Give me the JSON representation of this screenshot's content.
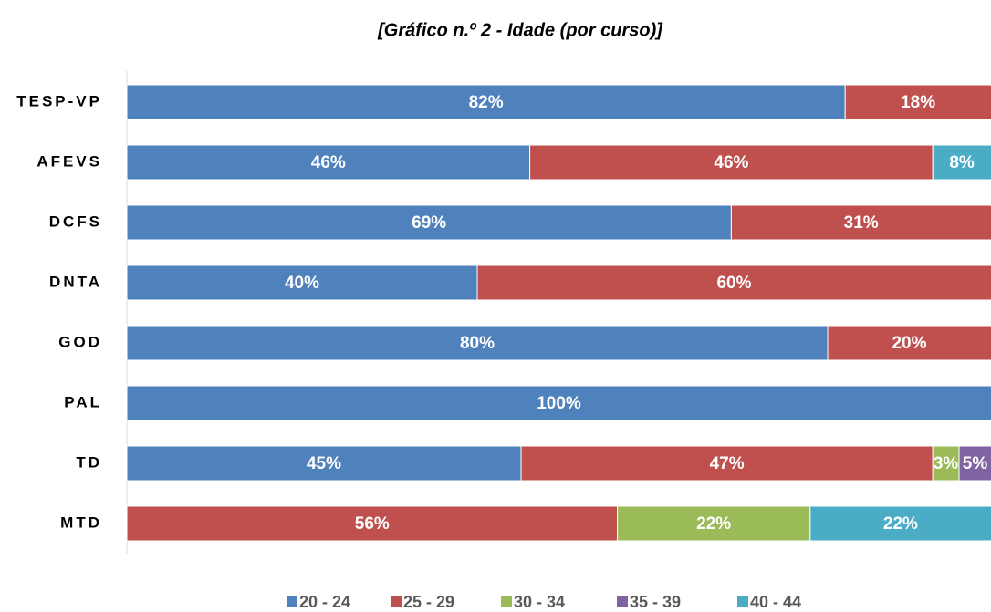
{
  "chart_data": {
    "type": "stacked-bar-horizontal",
    "title": "[Gráfico n.º 2 - Idade (por curso)]",
    "categories": [
      "TESP-VP",
      "AFEVS",
      "DCFS",
      "DNTA",
      "GOD",
      "PAL",
      "TD",
      "MTD"
    ],
    "xlim": [
      0,
      100
    ],
    "legend": "bottom",
    "series": [
      {
        "name": "20 - 24",
        "color": "#4f81bd",
        "values": [
          82,
          46,
          69,
          40,
          80,
          100,
          45,
          null
        ],
        "value_labels": [
          "82%",
          "46%",
          "69%",
          "40%",
          "80%",
          "100%",
          "45%",
          null
        ]
      },
      {
        "name": "25 - 29",
        "color": "#c0504d",
        "values": [
          18,
          46,
          31,
          60,
          20,
          null,
          47,
          56
        ],
        "value_labels": [
          "18%",
          "46%",
          "31%",
          "60%",
          "20%",
          null,
          "47%",
          "56%"
        ]
      },
      {
        "name": "30 - 34",
        "color": "#9bbb59",
        "values": [
          null,
          null,
          null,
          null,
          null,
          null,
          3,
          22
        ],
        "value_labels": [
          null,
          null,
          null,
          null,
          null,
          null,
          "3%",
          "22%"
        ]
      },
      {
        "name": "35 - 39",
        "color": "#8064a2",
        "values": [
          null,
          null,
          null,
          null,
          null,
          null,
          5,
          null
        ],
        "value_labels": [
          null,
          null,
          null,
          null,
          null,
          null,
          "5%",
          null
        ]
      },
      {
        "name": "40 - 44",
        "color": "#4bacc6",
        "values": [
          null,
          8,
          null,
          null,
          null,
          null,
          null,
          22
        ],
        "value_labels": [
          null,
          "8%",
          null,
          null,
          null,
          null,
          null,
          "22%"
        ]
      }
    ]
  }
}
